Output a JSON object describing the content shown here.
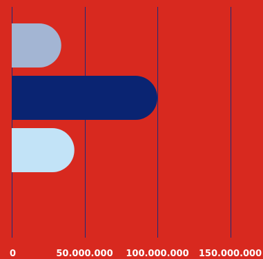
{
  "colors": {
    "background": "#d8291f",
    "gridline": "#1c2a78",
    "tick_label": "#ffffff",
    "series": [
      "#a3b5d3",
      "#0a2472",
      "#c2e3f7"
    ]
  },
  "chart_data": {
    "type": "bar",
    "orientation": "horizontal",
    "bar_shape": "rounded-end",
    "categories": [
      "",
      "",
      ""
    ],
    "values": [
      34000000,
      100000000,
      43000000
    ],
    "xlim": [
      0,
      172500000
    ],
    "x_ticks": [
      0,
      50000000,
      100000000,
      150000000
    ],
    "x_tick_labels": [
      "0",
      "50.000.000",
      "100.000.000",
      "150.000.000"
    ],
    "grid": true,
    "title": "",
    "xlabel": "",
    "ylabel": ""
  }
}
